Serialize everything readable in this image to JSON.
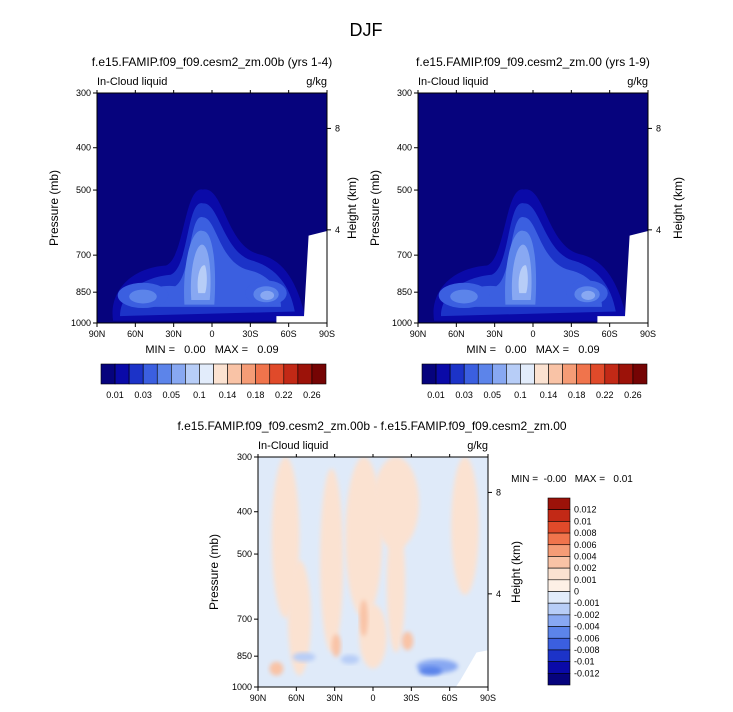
{
  "figure": {
    "title": "DJF"
  },
  "chart_data": [
    {
      "type": "heatmap",
      "title": "f.e15.FAMIP.f09_f09.cesm2_zm.00b (yrs 1-4)",
      "subtitle_left": "In-Cloud liquid",
      "subtitle_right": "g/kg",
      "xlabel": "",
      "ylabel": "Pressure (mb)",
      "ylabel_right": "Height (km)",
      "x_ticks": [
        "90N",
        "60N",
        "30N",
        "0",
        "30S",
        "60S",
        "90S"
      ],
      "y_ticks": [
        "300",
        "400",
        "500",
        "700",
        "850",
        "1000"
      ],
      "y_ticks_right": [
        "8",
        "4"
      ],
      "stats": "MIN =   0.00   MAX =   0.09",
      "colorbar_levels": [
        "0.01",
        "0.03",
        "0.05",
        "0.1",
        "0.14",
        "0.18",
        "0.22",
        "0.26"
      ],
      "colorbar_colors": [
        "#06037d",
        "#0a0aa8",
        "#1c33c8",
        "#3b5fe0",
        "#5c84ea",
        "#88a8f2",
        "#b7cdf7",
        "#e2ecfb",
        "#fbe2d1",
        "#f9c3a6",
        "#f59c76",
        "#f0744c",
        "#e04a2a",
        "#c22916",
        "#9c1209",
        "#750404"
      ],
      "features": [
        {
          "lat": 3,
          "p": 860,
          "peak_level": 6
        },
        {
          "lat": -40,
          "p": 860,
          "peak_level": 5
        },
        {
          "lat": 55,
          "p": 860,
          "peak_level": 4
        }
      ]
    },
    {
      "type": "heatmap",
      "title": "f.e15.FAMIP.f09_f09.cesm2_zm.00 (yrs 1-9)",
      "subtitle_left": "In-Cloud liquid",
      "subtitle_right": "g/kg",
      "xlabel": "",
      "ylabel": "Pressure (mb)",
      "ylabel_right": "Height (km)",
      "x_ticks": [
        "90N",
        "60N",
        "30N",
        "0",
        "30S",
        "60S",
        "90S"
      ],
      "y_ticks": [
        "300",
        "400",
        "500",
        "700",
        "850",
        "1000"
      ],
      "y_ticks_right": [
        "8",
        "4"
      ],
      "stats": "MIN =   0.00   MAX =   0.09",
      "colorbar_levels": [
        "0.01",
        "0.03",
        "0.05",
        "0.1",
        "0.14",
        "0.18",
        "0.22",
        "0.26"
      ],
      "colorbar_colors": [
        "#06037d",
        "#0a0aa8",
        "#1c33c8",
        "#3b5fe0",
        "#5c84ea",
        "#88a8f2",
        "#b7cdf7",
        "#e2ecfb",
        "#fbe2d1",
        "#f9c3a6",
        "#f59c76",
        "#f0744c",
        "#e04a2a",
        "#c22916",
        "#9c1209",
        "#750404"
      ]
    },
    {
      "type": "heatmap",
      "title": "f.e15.FAMIP.f09_f09.cesm2_zm.00b - f.e15.FAMIP.f09_f09.cesm2_zm.00",
      "subtitle_left": "In-Cloud liquid",
      "subtitle_right": "g/kg",
      "xlabel": "",
      "ylabel": "Pressure (mb)",
      "ylabel_right": "Height (km)",
      "x_ticks": [
        "90N",
        "60N",
        "30N",
        "0",
        "30S",
        "60S",
        "90S"
      ],
      "y_ticks": [
        "300",
        "400",
        "500",
        "700",
        "850",
        "1000"
      ],
      "y_ticks_right": [
        "8",
        "4"
      ],
      "stats": "MIN =  -0.00   MAX =   0.01",
      "colorbar_levels": [
        "0.012",
        "0.01",
        "0.008",
        "0.006",
        "0.004",
        "0.002",
        "0.001",
        "0",
        "-0.001",
        "-0.002",
        "-0.004",
        "-0.006",
        "-0.008",
        "-0.01",
        "-0.012"
      ],
      "colorbar_colors": [
        "#9c1209",
        "#c22916",
        "#e04a2a",
        "#f0744c",
        "#f59c76",
        "#f9c3a6",
        "#fbe2d1",
        "#fdf0e6",
        "#e2ecfb",
        "#b7cdf7",
        "#88a8f2",
        "#5c84ea",
        "#3b5fe0",
        "#1c33c8",
        "#0a0aa8",
        "#06037d"
      ]
    }
  ]
}
